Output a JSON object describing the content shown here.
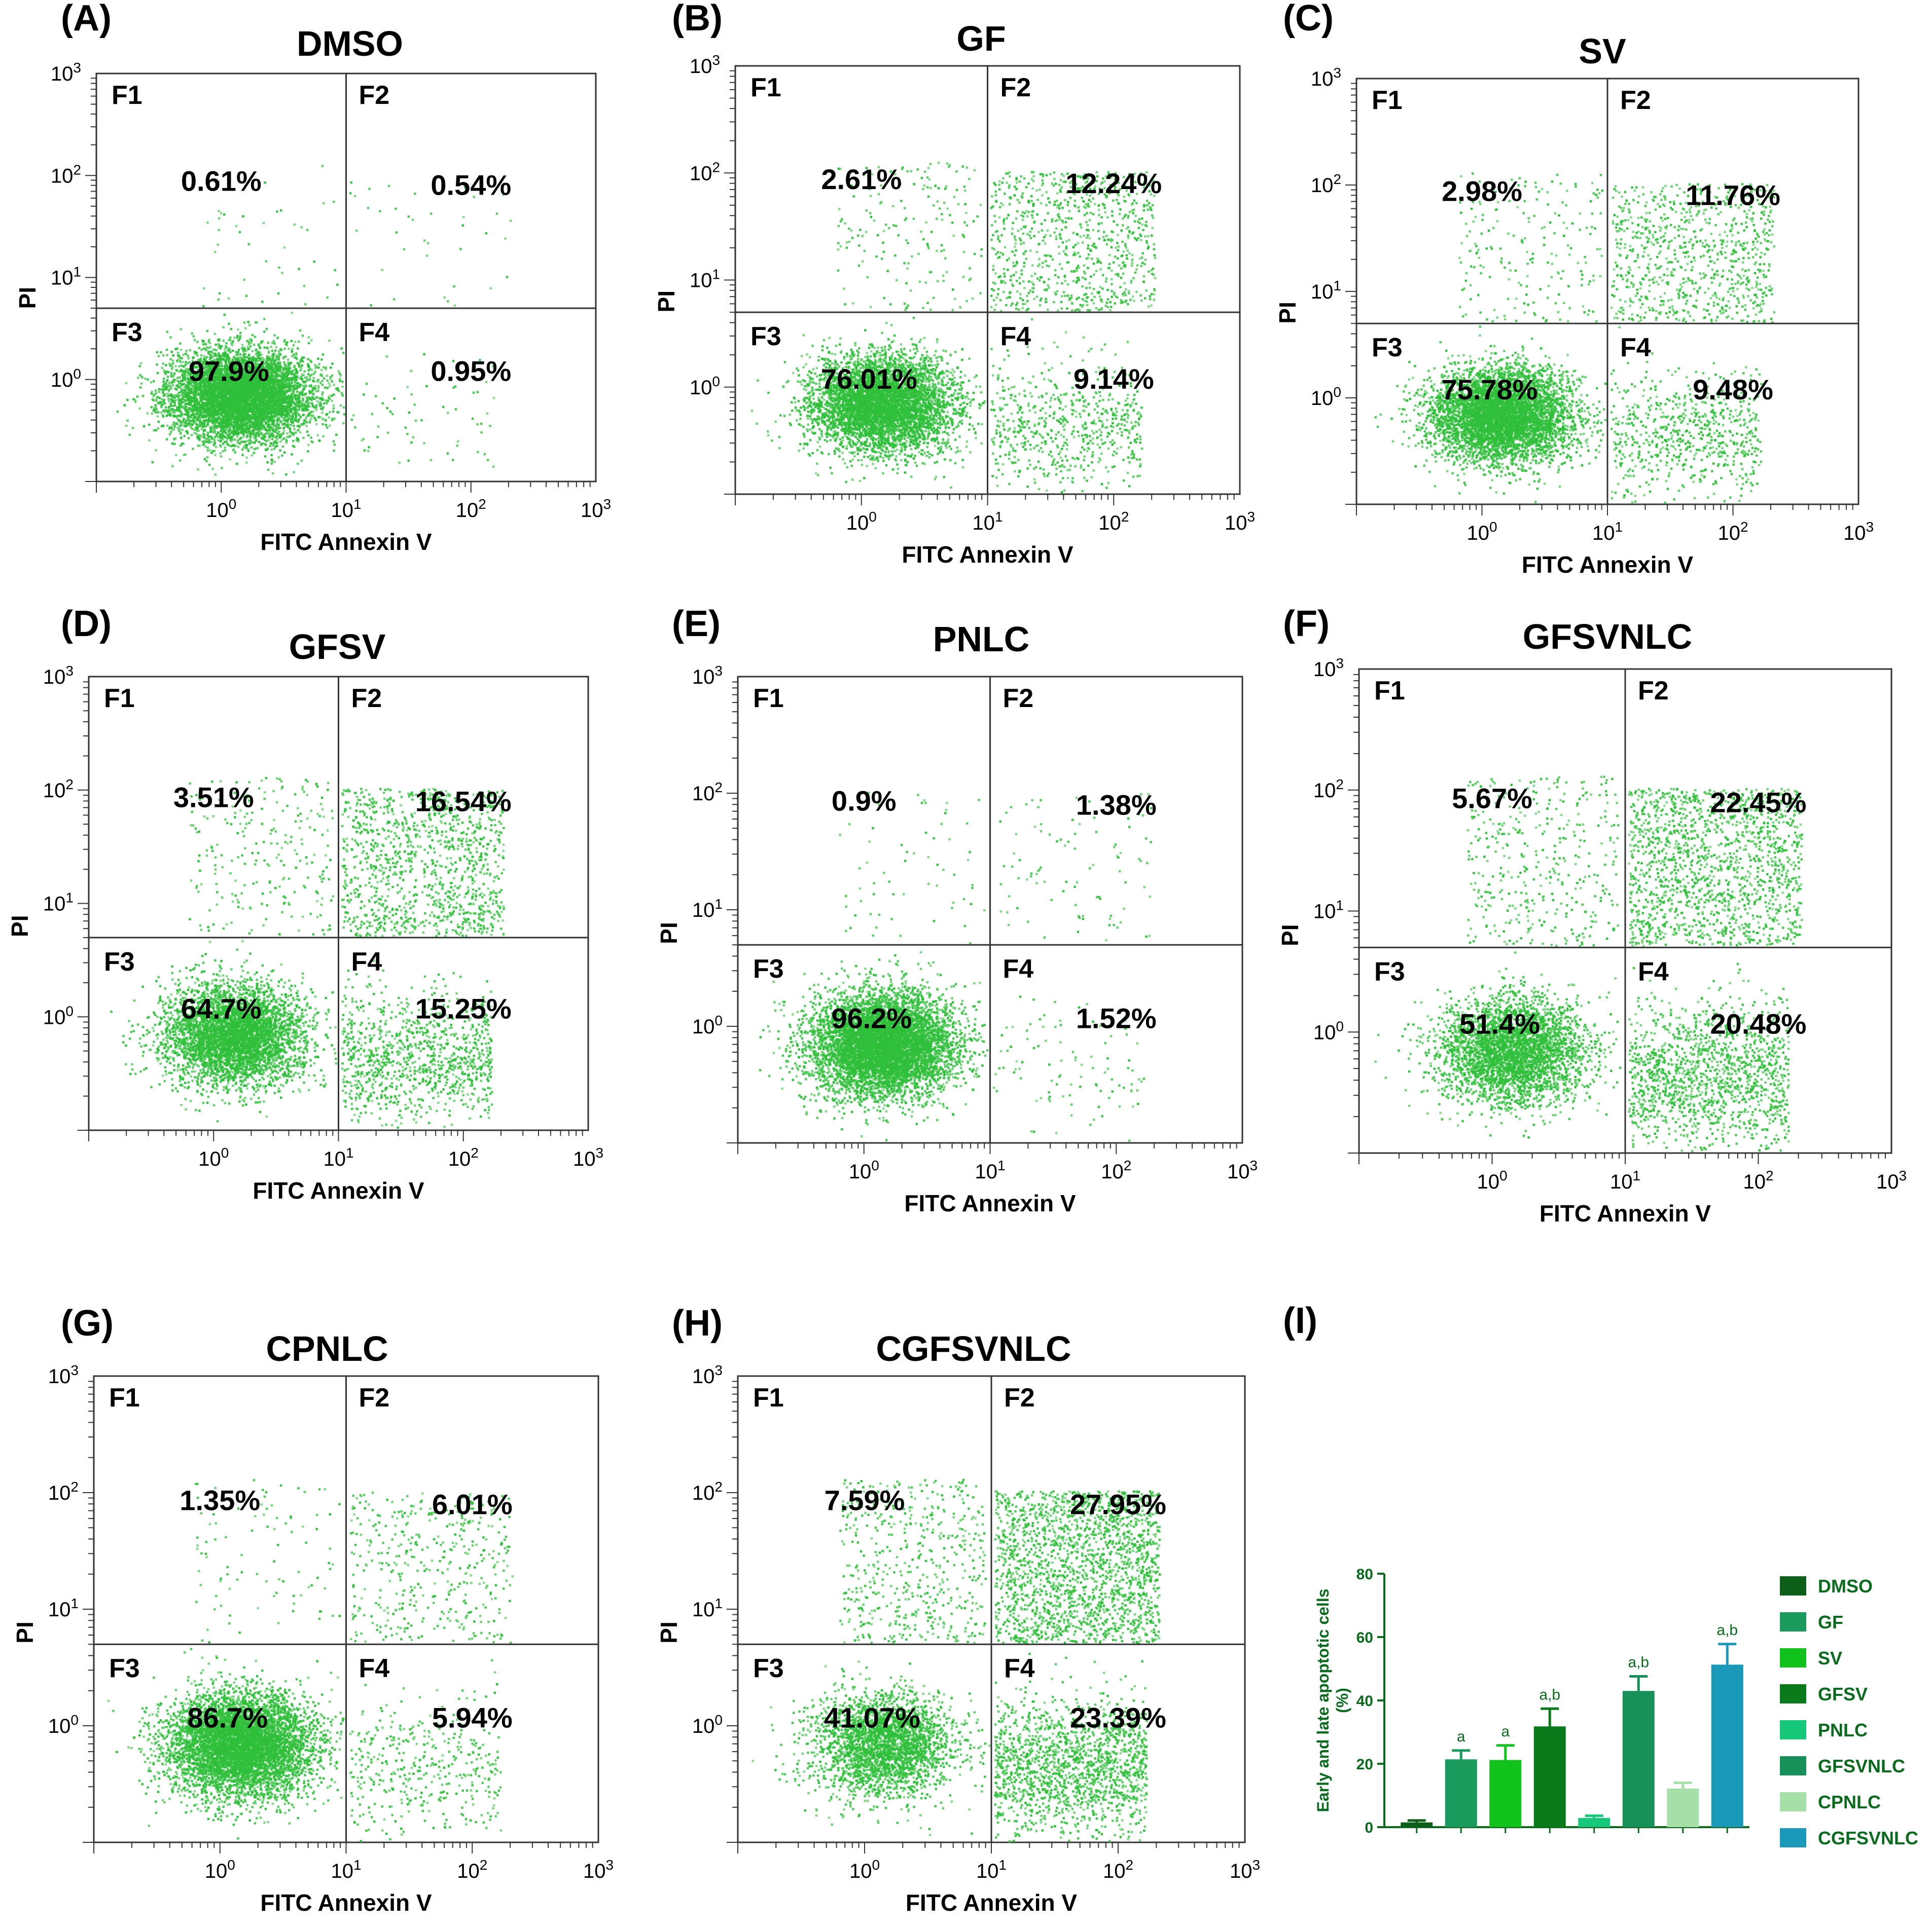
{
  "chart_data": [
    {
      "type": "scatter",
      "panel": "(A)",
      "title": "DMSO",
      "xlabel": "FITC Annexin V",
      "ylabel": "PI",
      "quadrant_labels": [
        "F1",
        "F2",
        "F3",
        "F4"
      ],
      "quadrant_percentages": {
        "F1": "0.61%",
        "F2": "0.54%",
        "F3": "97.9%",
        "F4": "0.95%"
      },
      "quadrant_fractions": {
        "F1": 0.61,
        "F2": 0.54,
        "F3": 97.9,
        "F4": 0.95
      },
      "gate": {
        "x": 10,
        "y": 5
      },
      "xlim": [
        0.1,
        1000
      ],
      "ylim": [
        0.1,
        1000
      ],
      "ticks": [
        "10^0",
        "10^1",
        "10^2",
        "10^3"
      ],
      "dot_color": "#2fbf3a"
    },
    {
      "type": "scatter",
      "panel": "(B)",
      "title": "GF",
      "xlabel": "FITC Annexin V",
      "ylabel": "PI",
      "quadrant_labels": [
        "F1",
        "F2",
        "F3",
        "F4"
      ],
      "quadrant_percentages": {
        "F1": "2.61%",
        "F2": "12.24%",
        "F3": "76.01%",
        "F4": "9.14%"
      },
      "quadrant_fractions": {
        "F1": 2.61,
        "F2": 12.24,
        "F3": 76.01,
        "F4": 9.14
      },
      "gate": {
        "x": 10,
        "y": 5
      },
      "xlim": [
        0.1,
        1000
      ],
      "ylim": [
        0.1,
        1000
      ],
      "ticks": [
        "10^0",
        "10^1",
        "10^2",
        "10^3"
      ],
      "dot_color": "#2fbf3a"
    },
    {
      "type": "scatter",
      "panel": "(C)",
      "title": "SV",
      "xlabel": "FITC Annexin V",
      "ylabel": "PI",
      "quadrant_labels": [
        "F1",
        "F2",
        "F3",
        "F4"
      ],
      "quadrant_percentages": {
        "F1": "2.98%",
        "F2": "11.76%",
        "F3": "75.78%",
        "F4": "9.48%"
      },
      "quadrant_fractions": {
        "F1": 2.98,
        "F2": 11.76,
        "F3": 75.78,
        "F4": 9.48
      },
      "gate": {
        "x": 10,
        "y": 5
      },
      "xlim": [
        0.1,
        1000
      ],
      "ylim": [
        0.1,
        1000
      ],
      "ticks": [
        "10^0",
        "10^1",
        "10^2",
        "10^3"
      ],
      "dot_color": "#2fbf3a"
    },
    {
      "type": "scatter",
      "panel": "(D)",
      "title": "GFSV",
      "xlabel": "FITC Annexin V",
      "ylabel": "PI",
      "quadrant_labels": [
        "F1",
        "F2",
        "F3",
        "F4"
      ],
      "quadrant_percentages": {
        "F1": "3.51%",
        "F2": "16.54%",
        "F3": "64.7%",
        "F4": "15.25%"
      },
      "quadrant_fractions": {
        "F1": 3.51,
        "F2": 16.54,
        "F3": 64.7,
        "F4": 15.25
      },
      "gate": {
        "x": 10,
        "y": 5
      },
      "xlim": [
        0.1,
        1000
      ],
      "ylim": [
        0.1,
        1000
      ],
      "ticks": [
        "10^0",
        "10^1",
        "10^2",
        "10^3"
      ],
      "dot_color": "#2fbf3a"
    },
    {
      "type": "scatter",
      "panel": "(E)",
      "title": "PNLC",
      "xlabel": "FITC Annexin V",
      "ylabel": "PI",
      "quadrant_labels": [
        "F1",
        "F2",
        "F3",
        "F4"
      ],
      "quadrant_percentages": {
        "F1": "0.9%",
        "F2": "1.38%",
        "F3": "96.2%",
        "F4": "1.52%"
      },
      "quadrant_fractions": {
        "F1": 0.9,
        "F2": 1.38,
        "F3": 96.2,
        "F4": 1.52
      },
      "gate": {
        "x": 10,
        "y": 5
      },
      "xlim": [
        0.1,
        1000
      ],
      "ylim": [
        0.1,
        1000
      ],
      "ticks": [
        "10^0",
        "10^1",
        "10^2",
        "10^3"
      ],
      "dot_color": "#2fbf3a"
    },
    {
      "type": "scatter",
      "panel": "(F)",
      "title": "GFSVNLC",
      "xlabel": "FITC Annexin V",
      "ylabel": "PI",
      "quadrant_labels": [
        "F1",
        "F2",
        "F3",
        "F4"
      ],
      "quadrant_percentages": {
        "F1": "5.67%",
        "F2": "22.45%",
        "F3": "51.4%",
        "F4": "20.48%"
      },
      "quadrant_fractions": {
        "F1": 5.67,
        "F2": 22.45,
        "F3": 51.4,
        "F4": 20.48
      },
      "gate": {
        "x": 10,
        "y": 5
      },
      "xlim": [
        0.1,
        1000
      ],
      "ylim": [
        0.1,
        1000
      ],
      "ticks": [
        "10^0",
        "10^1",
        "10^2",
        "10^3"
      ],
      "dot_color": "#2fbf3a"
    },
    {
      "type": "scatter",
      "panel": "(G)",
      "title": "CPNLC",
      "xlabel": "FITC Annexin V",
      "ylabel": "PI",
      "quadrant_labels": [
        "F1",
        "F2",
        "F3",
        "F4"
      ],
      "quadrant_percentages": {
        "F1": "1.35%",
        "F2": "6.01%",
        "F3": "86.7%",
        "F4": "5.94%"
      },
      "quadrant_fractions": {
        "F1": 1.35,
        "F2": 6.01,
        "F3": 86.7,
        "F4": 5.94
      },
      "gate": {
        "x": 10,
        "y": 5
      },
      "xlim": [
        0.1,
        1000
      ],
      "ylim": [
        0.1,
        1000
      ],
      "ticks": [
        "10^0",
        "10^1",
        "10^2",
        "10^3"
      ],
      "dot_color": "#2fbf3a"
    },
    {
      "type": "scatter",
      "panel": "(H)",
      "title": "CGFSVNLC",
      "xlabel": "FITC Annexin V",
      "ylabel": "PI",
      "quadrant_labels": [
        "F1",
        "F2",
        "F3",
        "F4"
      ],
      "quadrant_percentages": {
        "F1": "7.59%",
        "F2": "27.95%",
        "F3": "41.07%",
        "F4": "23.39%"
      },
      "quadrant_fractions": {
        "F1": 7.59,
        "F2": 27.95,
        "F3": 41.07,
        "F4": 23.39
      },
      "gate": {
        "x": 10,
        "y": 5
      },
      "xlim": [
        0.1,
        1000
      ],
      "ylim": [
        0.1,
        1000
      ],
      "ticks": [
        "10^0",
        "10^1",
        "10^2",
        "10^3"
      ],
      "dot_color": "#2fbf3a"
    },
    {
      "type": "bar",
      "panel": "(I)",
      "ylabel": "Early and late apoptotic cells (%)",
      "ylabel_lines": [
        "Early and late apoptotic cells",
        "(%)"
      ],
      "ylim": [
        0,
        80
      ],
      "yticks": [
        0,
        20,
        40,
        60,
        80
      ],
      "categories": [
        "DMSO",
        "GF",
        "SV",
        "GFSV",
        "PNLC",
        "GFSVNLC",
        "CPNLC",
        "CGFSVNLC"
      ],
      "values": [
        1.5,
        21.4,
        21.2,
        31.8,
        2.9,
        43.0,
        12.2,
        51.3
      ],
      "errors": [
        0.6,
        2.8,
        4.6,
        5.6,
        0.7,
        4.6,
        1.8,
        6.5
      ],
      "significance": [
        "",
        "a",
        "a",
        "a,b",
        "",
        "a,b",
        "",
        "a,b"
      ],
      "colors": [
        "#0c5e18",
        "#1a9a5c",
        "#12c21c",
        "#0a7a1a",
        "#18c87a",
        "#17905a",
        "#a7dfa9",
        "#1a9ab8"
      ],
      "legend": [
        "DMSO",
        "GF",
        "SV",
        "GFSV",
        "PNLC",
        "GFSVNLC",
        "CPNLC",
        "CGFSVNLC"
      ],
      "legend_position": "right"
    }
  ]
}
